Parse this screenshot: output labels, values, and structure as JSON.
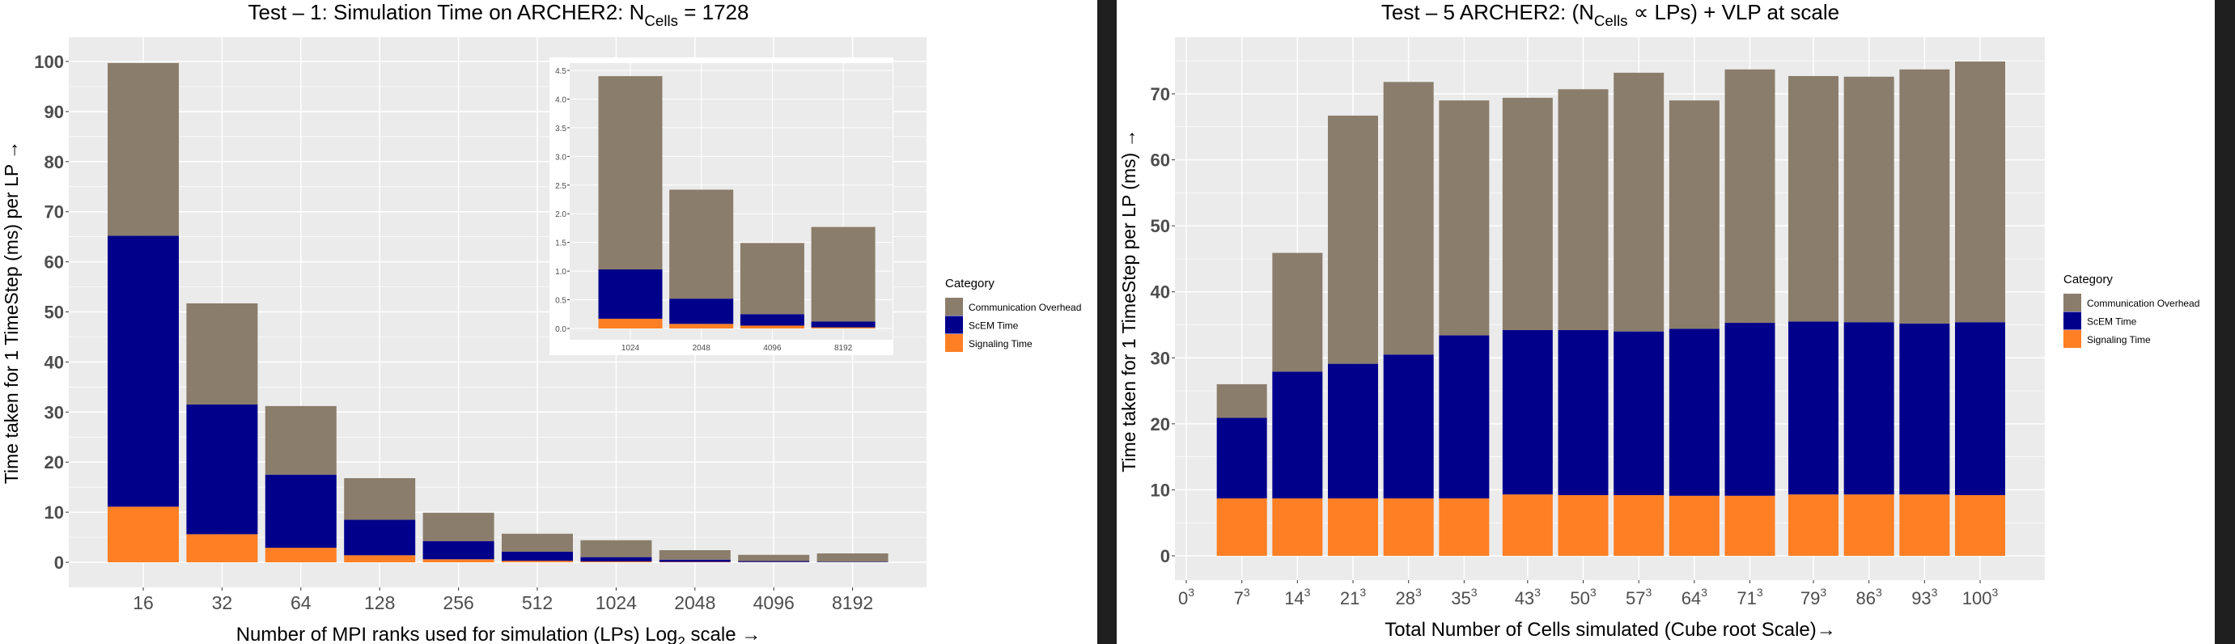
{
  "colors": {
    "Communication Overhead": "#8b7d6b",
    "ScEM Time": "#00008b",
    "Signaling Time": "#ff7f24",
    "panel": "#ebebeb",
    "grid": "#ffffff"
  },
  "chart_data": [
    {
      "type": "bar",
      "stacked": true,
      "title_parts": {
        "pre": "Test –  1: Simulation Time on ARCHER2: N",
        "sub": "Cells",
        "post": " = 1728"
      },
      "xlabel_parts": {
        "pre": "Number of MPI ranks used for simulation (LPs)  Log",
        "sub": "2",
        "post": " scale →"
      },
      "ylabel": "Time taken for 1 TimeStep (ms) per LP →",
      "categories": [
        "16",
        "32",
        "64",
        "128",
        "256",
        "512",
        "1024",
        "2048",
        "4096",
        "8192"
      ],
      "ylim": [
        0,
        100
      ],
      "yticks": [
        "0",
        "10",
        "20",
        "30",
        "40",
        "50",
        "60",
        "70",
        "80",
        "90",
        "100"
      ],
      "series": [
        {
          "name": "Signaling Time",
          "values": [
            11.1,
            5.6,
            2.9,
            1.4,
            0.6,
            0.3,
            0.17,
            0.08,
            0.05,
            0.02
          ]
        },
        {
          "name": "ScEM Time",
          "values": [
            54.1,
            25.9,
            14.6,
            7.1,
            3.6,
            1.8,
            0.86,
            0.44,
            0.2,
            0.1
          ]
        },
        {
          "name": "Communication Overhead",
          "values": [
            34.5,
            20.2,
            13.7,
            8.3,
            5.7,
            3.6,
            3.37,
            1.9,
            1.24,
            1.65
          ]
        }
      ],
      "legend": {
        "title": "Category",
        "position": "right",
        "items": [
          "Communication Overhead",
          "ScEM Time",
          "Signaling Time"
        ]
      },
      "inset": {
        "type": "bar",
        "stacked": true,
        "categories": [
          "1024",
          "2048",
          "4096",
          "8192"
        ],
        "ylim": [
          0,
          4.5
        ],
        "yticks": [
          "0.0",
          "0.5",
          "1.0",
          "1.5",
          "2.0",
          "2.5",
          "3.0",
          "3.5",
          "4.0",
          "4.5"
        ],
        "series": [
          {
            "name": "Signaling Time",
            "values": [
              0.17,
              0.08,
              0.05,
              0.02
            ]
          },
          {
            "name": "ScEM Time",
            "values": [
              0.86,
              0.44,
              0.2,
              0.1
            ]
          },
          {
            "name": "Communication Overhead",
            "values": [
              3.37,
              1.9,
              1.24,
              1.65
            ]
          }
        ]
      }
    },
    {
      "type": "bar",
      "stacked": true,
      "title_parts": {
        "pre": "Test –  5 ARCHER2: (N",
        "sub": "Cells",
        "post": " ∝  LPs) + VLP     at scale"
      },
      "xlabel_parts": {
        "pre": "Total Number of Cells simulated (Cube root Scale)",
        "sub": "",
        "post": "→"
      },
      "ylabel": "Time taken for 1 TimeStep per LP (ms)  →",
      "x": [
        7,
        14,
        21,
        28,
        35,
        43,
        50,
        57,
        64,
        71,
        79,
        86,
        93,
        100
      ],
      "xticks": [
        0,
        7,
        14,
        21,
        28,
        35,
        43,
        50,
        57,
        64,
        71,
        79,
        86,
        93,
        100
      ],
      "xtick_exponent": "3",
      "ylim": [
        0,
        75
      ],
      "yticks": [
        "0",
        "10",
        "20",
        "30",
        "40",
        "50",
        "60",
        "70"
      ],
      "series": [
        {
          "name": "Signaling Time",
          "values": [
            8.7,
            8.7,
            8.7,
            8.7,
            8.7,
            9.3,
            9.2,
            9.2,
            9.1,
            9.1,
            9.3,
            9.3,
            9.3,
            9.2
          ]
        },
        {
          "name": "ScEM Time",
          "values": [
            12.2,
            19.2,
            20.4,
            21.8,
            24.7,
            24.9,
            25.0,
            24.8,
            25.3,
            26.2,
            26.2,
            26.1,
            25.9,
            26.2
          ]
        },
        {
          "name": "Communication Overhead",
          "values": [
            5.1,
            18.0,
            37.6,
            41.3,
            35.6,
            35.2,
            36.5,
            39.2,
            34.6,
            38.4,
            37.2,
            37.2,
            38.5,
            39.5
          ]
        }
      ],
      "legend": {
        "title": "Category",
        "position": "right",
        "items": [
          "Communication Overhead",
          "ScEM Time",
          "Signaling Time"
        ]
      }
    }
  ]
}
